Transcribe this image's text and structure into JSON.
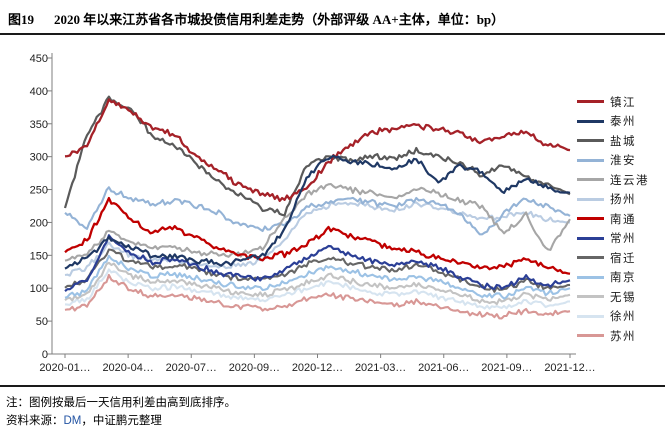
{
  "title": {
    "tag": "图19",
    "text": "2020 年以来江苏省各市城投债信用利差走势（外部评级 AA+主体，单位：bp）"
  },
  "notes": {
    "note": "注：图例按最后一天信用利差由高到底排序。",
    "source_label": "资料来源：",
    "source_link": "DM",
    "source_rest": "，中证鹏元整理"
  },
  "chart_data": {
    "type": "line",
    "title": "2020 年以来江苏省各市城投债信用利差走势（外部评级 AA+主体，单位：bp）",
    "unit": "bp",
    "grid": false,
    "legend_position": "right",
    "ylim": [
      0,
      450
    ],
    "y_ticks": [
      0,
      50,
      100,
      150,
      200,
      250,
      300,
      350,
      400,
      450
    ],
    "x_tick_labels": [
      "2020-01…",
      "2020-04…",
      "2020-07…",
      "2020-09…",
      "2020-12…",
      "2021-03…",
      "2021-06…",
      "2021-09…",
      "2021-12…"
    ],
    "categories": [
      "2020-01",
      "2020-02",
      "2020-03",
      "2020-04",
      "2020-05",
      "2020-06",
      "2020-07",
      "2020-08",
      "2020-09",
      "2020-10",
      "2020-11",
      "2020-12",
      "2021-01",
      "2021-02",
      "2021-03",
      "2021-04",
      "2021-05",
      "2021-06",
      "2021-07",
      "2021-08",
      "2021-09",
      "2021-10",
      "2021-11",
      "2021-12"
    ],
    "series": [
      {
        "key": "zhenjiang",
        "name": "镇江",
        "color": "#A52128",
        "width": 2.3,
        "values": [
          300,
          318,
          385,
          368,
          345,
          332,
          300,
          278,
          256,
          242,
          236,
          252,
          292,
          318,
          338,
          342,
          348,
          342,
          334,
          322,
          332,
          338,
          318,
          310
        ]
      },
      {
        "key": "taizhou",
        "name": "泰州",
        "color": "#1F3864",
        "width": 2.2,
        "values": [
          130,
          146,
          176,
          162,
          150,
          148,
          142,
          138,
          141,
          150,
          188,
          268,
          300,
          292,
          288,
          282,
          296,
          262,
          286,
          276,
          246,
          268,
          252,
          245
        ]
      },
      {
        "key": "yancheng",
        "name": "盐城",
        "color": "#5A5A5A",
        "width": 2.2,
        "values": [
          222,
          332,
          390,
          372,
          330,
          318,
          288,
          262,
          240,
          222,
          215,
          288,
          300,
          295,
          302,
          296,
          310,
          300,
          290,
          272,
          286,
          270,
          256,
          243
        ]
      },
      {
        "key": "huaian",
        "name": "淮安",
        "color": "#94B3D6",
        "width": 2.1,
        "values": [
          215,
          192,
          252,
          236,
          228,
          234,
          226,
          215,
          196,
          190,
          196,
          224,
          230,
          236,
          230,
          224,
          234,
          228,
          212,
          178,
          216,
          236,
          224,
          210
        ]
      },
      {
        "key": "lianyungang",
        "name": "连云港",
        "color": "#A6A6A6",
        "width": 2.1,
        "values": [
          142,
          152,
          186,
          170,
          164,
          161,
          155,
          150,
          153,
          162,
          205,
          242,
          256,
          250,
          244,
          240,
          250,
          244,
          234,
          224,
          182,
          212,
          156,
          205
        ]
      },
      {
        "key": "yangzhou",
        "name": "扬州",
        "color": "#BACCE2",
        "width": 2.1,
        "values": [
          120,
          132,
          166,
          150,
          144,
          142,
          137,
          132,
          136,
          142,
          172,
          216,
          226,
          231,
          225,
          219,
          229,
          223,
          214,
          204,
          210,
          216,
          204,
          200
        ]
      },
      {
        "key": "nantong",
        "name": "南通",
        "color": "#C00000",
        "width": 2.3,
        "values": [
          155,
          172,
          235,
          205,
          186,
          191,
          176,
          161,
          150,
          145,
          152,
          166,
          190,
          180,
          170,
          161,
          156,
          146,
          139,
          131,
          133,
          146,
          131,
          122
        ]
      },
      {
        "key": "changzhou",
        "name": "常州",
        "color": "#2B3F96",
        "width": 2.2,
        "values": [
          96,
          112,
          178,
          154,
          140,
          145,
          134,
          124,
          118,
          114,
          126,
          146,
          161,
          151,
          141,
          135,
          141,
          131,
          118,
          105,
          101,
          116,
          104,
          112
        ]
      },
      {
        "key": "suqian",
        "name": "宿迁",
        "color": "#666666",
        "width": 2.1,
        "values": [
          101,
          113,
          158,
          141,
          132,
          136,
          128,
          120,
          115,
          112,
          121,
          136,
          146,
          139,
          132,
          128,
          135,
          126,
          112,
          100,
          98,
          111,
          100,
          105
        ]
      },
      {
        "key": "nanjing",
        "name": "南京",
        "color": "#9CC2E5",
        "width": 2.1,
        "values": [
          86,
          96,
          149,
          128,
          118,
          122,
          115,
          108,
          102,
          100,
          109,
          121,
          133,
          126,
          118,
          113,
          119,
          111,
          100,
          90,
          88,
          101,
          92,
          100
        ]
      },
      {
        "key": "wuxi",
        "name": "无锡",
        "color": "#C3C3C3",
        "width": 2.1,
        "values": [
          82,
          91,
          139,
          120,
          110,
          112,
          105,
          98,
          92,
          90,
          97,
          109,
          119,
          111,
          104,
          100,
          106,
          98,
          90,
          82,
          80,
          91,
          84,
          90
        ]
      },
      {
        "key": "xuzhou",
        "name": "徐州",
        "color": "#D6E4F0",
        "width": 2.1,
        "values": [
          76,
          83,
          128,
          108,
          100,
          102,
          96,
          90,
          85,
          82,
          89,
          99,
          109,
          101,
          94,
          90,
          96,
          88,
          80,
          72,
          70,
          81,
          74,
          80
        ]
      },
      {
        "key": "suzhou",
        "name": "苏州",
        "color": "#D89795",
        "width": 2.1,
        "values": [
          67,
          73,
          118,
          98,
          88,
          90,
          84,
          78,
          72,
          68,
          73,
          83,
          91,
          85,
          78,
          74,
          79,
          72,
          66,
          60,
          58,
          67,
          60,
          65
        ]
      }
    ]
  }
}
